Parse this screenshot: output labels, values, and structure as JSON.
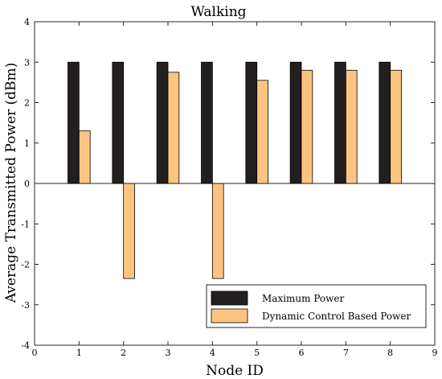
{
  "chart_data": {
    "type": "bar",
    "title": "Walking",
    "xlabel": "Node ID",
    "ylabel": "Average Transmitted Power (dBm)",
    "xlim": [
      0,
      9
    ],
    "ylim": [
      -4,
      4
    ],
    "xticks": [
      0,
      1,
      2,
      3,
      4,
      5,
      6,
      7,
      8,
      9
    ],
    "yticks": [
      -4,
      -3,
      -2,
      -1,
      0,
      1,
      2,
      3,
      4
    ],
    "categories": [
      1,
      2,
      3,
      4,
      5,
      6,
      7,
      8
    ],
    "series": [
      {
        "name": "Maximum Power",
        "color": "#231f20",
        "values": [
          3,
          3,
          3,
          3,
          3,
          3,
          3,
          3
        ]
      },
      {
        "name": "Dynamic Control Based Power",
        "color": "#fdc47f",
        "values": [
          1.3,
          -2.35,
          2.75,
          -2.35,
          2.55,
          2.8,
          2.8,
          2.8
        ]
      }
    ],
    "grid": false,
    "legend_position": "bottom-right"
  }
}
